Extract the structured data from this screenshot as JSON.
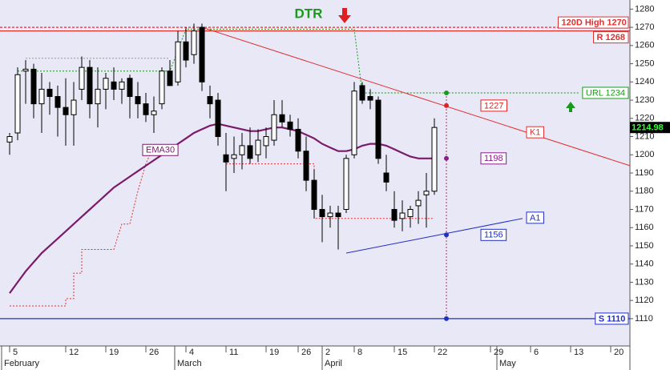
{
  "chart_data": {
    "type": "candlestick",
    "open": [
      1207,
      1212,
      1246,
      1247,
      1228,
      1236,
      1232,
      1226,
      1222,
      1236,
      1248,
      1228,
      1236,
      1240,
      1236,
      1242,
      1232,
      1228,
      1222,
      1228,
      1246,
      1240,
      1262,
      1255,
      1270,
      1232,
      1230,
      1200,
      1198,
      1200,
      1205,
      1200,
      1205,
      1208,
      1222,
      1218,
      1214,
      1202,
      1186,
      1170,
      1166,
      1168,
      1170,
      1200,
      1238,
      1232,
      1230,
      1190,
      1170,
      1165,
      1166,
      1172,
      1178,
      1180
    ],
    "high": [
      1212,
      1248,
      1252,
      1250,
      1245,
      1240,
      1238,
      1242,
      1240,
      1254,
      1252,
      1248,
      1245,
      1248,
      1242,
      1244,
      1240,
      1234,
      1232,
      1248,
      1252,
      1268,
      1270,
      1272,
      1272,
      1238,
      1234,
      1212,
      1210,
      1212,
      1215,
      1214,
      1215,
      1230,
      1230,
      1222,
      1220,
      1210,
      1192,
      1178,
      1172,
      1172,
      1200,
      1240,
      1240,
      1236,
      1232,
      1200,
      1180,
      1175,
      1172,
      1180,
      1190,
      1220
    ],
    "low": [
      1200,
      1208,
      1228,
      1220,
      1212,
      1222,
      1210,
      1205,
      1205,
      1230,
      1220,
      1215,
      1225,
      1230,
      1228,
      1220,
      1220,
      1218,
      1212,
      1225,
      1238,
      1238,
      1248,
      1250,
      1235,
      1220,
      1205,
      1180,
      1190,
      1192,
      1195,
      1196,
      1198,
      1205,
      1215,
      1210,
      1198,
      1180,
      1165,
      1152,
      1160,
      1148,
      1168,
      1198,
      1228,
      1225,
      1195,
      1180,
      1160,
      1158,
      1160,
      1162,
      1160,
      1178
    ],
    "close": [
      1210,
      1244,
      1247,
      1228,
      1236,
      1232,
      1226,
      1222,
      1230,
      1248,
      1228,
      1236,
      1242,
      1236,
      1240,
      1232,
      1228,
      1222,
      1224,
      1246,
      1238,
      1262,
      1252,
      1268,
      1240,
      1228,
      1210,
      1196,
      1200,
      1205,
      1198,
      1208,
      1210,
      1222,
      1218,
      1214,
      1202,
      1186,
      1170,
      1166,
      1168,
      1166,
      1198,
      1235,
      1230,
      1230,
      1198,
      1185,
      1164,
      1168,
      1170,
      1175,
      1180,
      1215
    ],
    "ema": {
      "name": "EMA30",
      "color": "#7a1a6a",
      "values": [
        1124,
        1130,
        1136,
        1141,
        1146,
        1150,
        1154,
        1158,
        1162,
        1166,
        1170,
        1174,
        1178,
        1182,
        1185,
        1188,
        1191,
        1194,
        1197,
        1200,
        1203,
        1206,
        1209,
        1212,
        1214,
        1216,
        1217,
        1216,
        1215,
        1214,
        1213,
        1213,
        1214,
        1215,
        1215,
        1214,
        1213,
        1211,
        1209,
        1206,
        1204,
        1202,
        1202,
        1203,
        1205,
        1206,
        1206,
        1205,
        1203,
        1201,
        1199,
        1198,
        1198,
        1198
      ]
    },
    "lines": [
      {
        "color": "#e03030",
        "points": [
          [
            0,
            1117
          ],
          [
            7,
            1117
          ],
          [
            7,
            1121
          ],
          [
            8,
            1121
          ],
          [
            8,
            1135
          ],
          [
            9,
            1135
          ],
          [
            9,
            1148
          ],
          [
            13,
            1148
          ],
          [
            14,
            1162
          ],
          [
            15,
            1162
          ],
          [
            16,
            1180
          ],
          [
            17,
            1195
          ],
          [
            18,
            1205
          ]
        ]
      },
      {
        "color": "#e03030",
        "points": [
          [
            27,
            1195
          ],
          [
            38,
            1195
          ],
          [
            38,
            1165
          ],
          [
            53,
            1165
          ]
        ]
      },
      {
        "color": "#999999",
        "points": [
          [
            2,
            1253
          ],
          [
            20,
            1253
          ]
        ]
      },
      {
        "color": "#1a9a1a",
        "points": [
          [
            1,
            1246
          ],
          [
            20,
            1246
          ],
          [
            22,
            1269
          ],
          [
            43,
            1269
          ],
          [
            44,
            1234
          ],
          [
            71,
            1234
          ]
        ]
      }
    ],
    "trendlines": [
      {
        "label": "K1",
        "color": "#e03030",
        "points": [
          [
            24,
            1270
          ],
          [
            77.4,
            1194
          ]
        ]
      },
      {
        "label": "A1",
        "color": "#2030c0",
        "points": [
          [
            42,
            1146
          ],
          [
            64,
            1165
          ]
        ]
      }
    ],
    "levels": [
      {
        "label": "120D High 1270",
        "value": 1270,
        "color": "#e03030",
        "dash": true
      },
      {
        "label": "R 1268",
        "value": 1268,
        "color": "#e03030",
        "dash": false
      },
      {
        "label": "S 1110",
        "value": 1110,
        "color": "#2030c0",
        "dash": false
      }
    ],
    "marker_x": 54.5,
    "markers": [
      {
        "value": 1234,
        "color": "#1a9a1a",
        "label": "URL 1234"
      },
      {
        "value": 1227,
        "color": "#e02020",
        "boxed": true
      },
      {
        "value": 1198,
        "color": "#8b1a8b",
        "boxed": true
      },
      {
        "value": 1156,
        "color": "#2030c0",
        "boxed": true
      },
      {
        "value": 1110,
        "color": "#2030c0",
        "boxed": false
      }
    ],
    "annotation": "DTR",
    "last_price": 1214.98,
    "xlim": [
      -1.2,
      77.4
    ],
    "xticks": [
      {
        "value": 0,
        "label": "5"
      },
      {
        "value": 7,
        "label": "12"
      },
      {
        "value": 12,
        "label": "19"
      },
      {
        "value": 17,
        "label": "26"
      },
      {
        "value": 22,
        "label": "4"
      },
      {
        "value": 27,
        "label": "11"
      },
      {
        "value": 32,
        "label": "19"
      },
      {
        "value": 36,
        "label": "26"
      },
      {
        "value": 39,
        "label": "2"
      },
      {
        "value": 43,
        "label": "8"
      },
      {
        "value": 48,
        "label": "15"
      },
      {
        "value": 53,
        "label": "22"
      },
      {
        "value": 60,
        "label": "29"
      },
      {
        "value": 65,
        "label": "6"
      },
      {
        "value": 70,
        "label": "13"
      },
      {
        "value": 75,
        "label": "20"
      }
    ],
    "xmonths": [
      {
        "value": -1,
        "label": "February"
      },
      {
        "value": 20.6,
        "label": "March"
      },
      {
        "value": 39,
        "label": "April"
      },
      {
        "value": 60.8,
        "label": "May"
      }
    ],
    "ylim": [
      1095,
      1285
    ],
    "yticks": [
      1110,
      1120,
      1130,
      1140,
      1150,
      1160,
      1170,
      1180,
      1190,
      1200,
      1210,
      1220,
      1230,
      1240,
      1250,
      1260,
      1270,
      1280
    ]
  }
}
